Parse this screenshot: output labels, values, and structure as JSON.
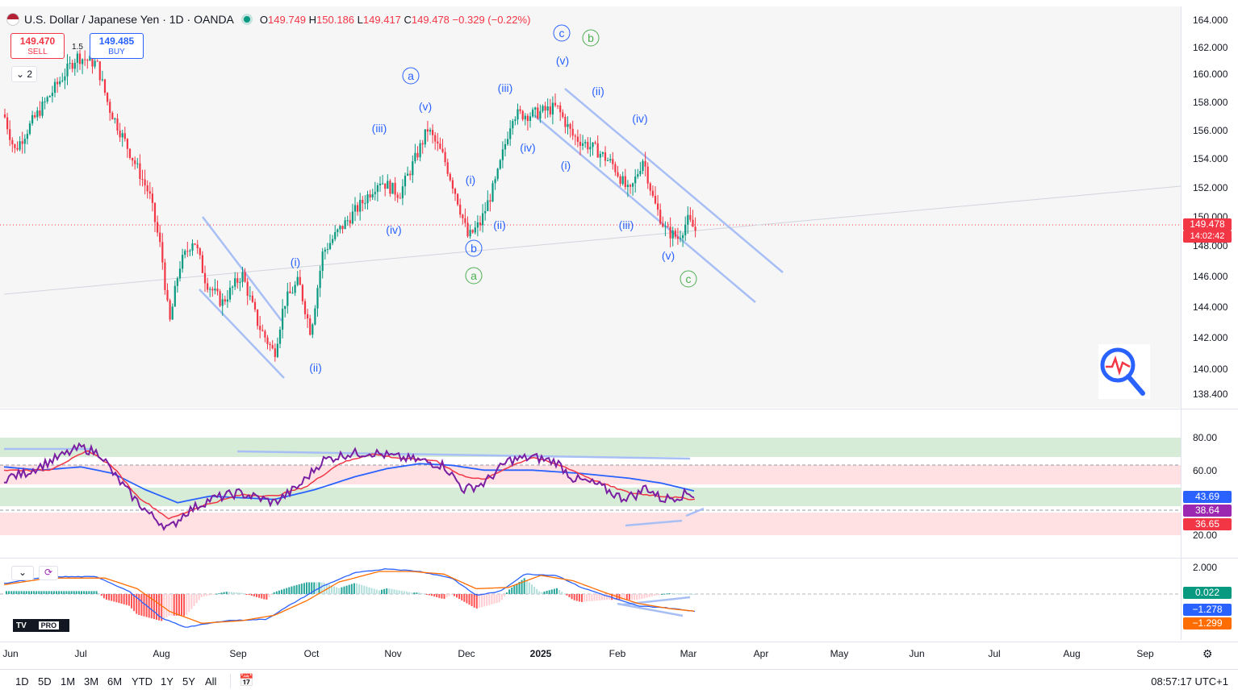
{
  "legend": {
    "symbol": "U.S. Dollar / Japanese Yen · 1D · OANDA",
    "o_label": "O",
    "o": "149.749",
    "h_label": "H",
    "h": "150.186",
    "l_label": "L",
    "l": "149.417",
    "c_label": "C",
    "c": "149.478",
    "change": "−0.329 (−0.22%)"
  },
  "trade": {
    "sell_price": "149.470",
    "sell_label": "SELL",
    "buy_price": "149.485",
    "buy_label": "BUY",
    "spread": "1.5"
  },
  "collapse_count": "2",
  "price_axis": [
    "164.000",
    "162.000",
    "160.000",
    "158.000",
    "156.000",
    "154.000",
    "152.000",
    "150.000",
    "148.000",
    "146.000",
    "144.000",
    "142.000",
    "140.000",
    "138.400"
  ],
  "last_price": {
    "value": "149.478",
    "countdown": "14:02:42"
  },
  "rsi_axis": [
    "80.00",
    "60.00",
    "20.00"
  ],
  "rsi_pills": {
    "ma": "43.69",
    "rsi": "38.64",
    "other": "36.65"
  },
  "macd_axis": [
    "2.000"
  ],
  "macd_pills": {
    "hist": "0.022",
    "macd": "−1.278",
    "signal": "−1.299"
  },
  "time_axis": [
    "Jun",
    "Jul",
    "Aug",
    "Sep",
    "Oct",
    "Nov",
    "Dec",
    "2025",
    "Feb",
    "Mar",
    "Apr",
    "May",
    "Jun",
    "Jul",
    "Aug",
    "Sep"
  ],
  "wave_labels": {
    "a_circ": "a",
    "b_circ": "b",
    "c_circ": "c",
    "i": "(i)",
    "ii": "(ii)",
    "iii": "(iii)",
    "iv": "(iv)",
    "v": "(v)"
  },
  "timeframes": [
    "1D",
    "5D",
    "1M",
    "3M",
    "6M",
    "YTD",
    "1Y",
    "5Y",
    "All"
  ],
  "clock": "08:57:17 UTC+1",
  "logo": "PRO",
  "colors": {
    "up": "#089981",
    "down": "#f23645",
    "wave_blue": "#2962ff",
    "wave_green": "#4caf50",
    "channel": "#a8bff5",
    "rsi": "#7b1fa2",
    "rsi_ma_red": "#f23645",
    "rsi_ma_blue": "#2962ff",
    "macd": "#2962ff",
    "signal": "#ff6d00"
  }
}
